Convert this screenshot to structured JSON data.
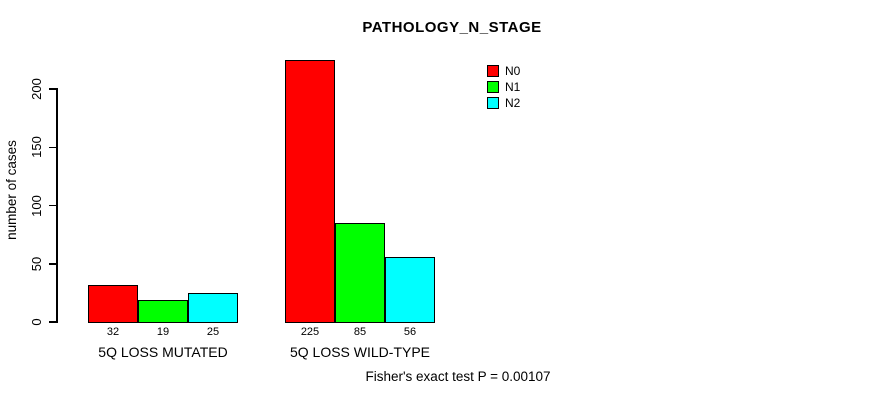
{
  "chart_data": {
    "type": "bar",
    "title": "PATHOLOGY_N_STAGE",
    "xlabel": "",
    "ylabel": "number of cases",
    "categories": [
      "5Q LOSS MUTATED",
      "5Q LOSS WILD-TYPE"
    ],
    "series": [
      {
        "name": "N0",
        "color": "#FF0000",
        "values": [
          32,
          225
        ]
      },
      {
        "name": "N1",
        "color": "#00FF00",
        "values": [
          19,
          85
        ]
      },
      {
        "name": "N2",
        "color": "#00FFFF",
        "values": [
          25,
          56
        ]
      }
    ],
    "bar_value_labels": [
      [
        32,
        19,
        25
      ],
      [
        225,
        85,
        56
      ]
    ],
    "ylim": [
      0,
      233
    ],
    "yticks": [
      0,
      50,
      100,
      150,
      200
    ],
    "grid": false,
    "legend_position": "top-right",
    "annotation": "Fisher's exact test P = 0.00107"
  }
}
